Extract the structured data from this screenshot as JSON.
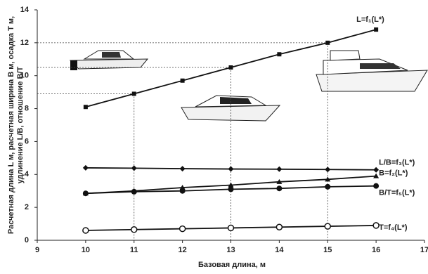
{
  "chart_data": {
    "type": "line",
    "x_label": "Базовая длина, м",
    "y_label": [
      "Расчетная длина L м, расчетная ширина В м, осадка Т м,",
      "удлинение L/B, отношение B/T"
    ],
    "x": [
      10,
      11,
      12,
      13,
      14,
      15,
      16
    ],
    "xlim": [
      9,
      17
    ],
    "xticks": [
      9,
      10,
      11,
      12,
      13,
      14,
      15,
      16,
      17
    ],
    "ylim": [
      0,
      14
    ],
    "yticks": [
      0,
      2,
      4,
      6,
      8,
      10,
      12,
      14
    ],
    "guide_points": [
      1,
      3,
      5
    ],
    "series": [
      {
        "name": "L=f₁(L*)",
        "color": "#111",
        "marker": "square",
        "values": [
          8.1,
          8.9,
          9.7,
          10.5,
          11.3,
          12.0,
          12.8
        ]
      },
      {
        "name": "L/B=f₃(L*)",
        "color": "#111",
        "marker": "diamond",
        "values": [
          4.4,
          4.38,
          4.35,
          4.33,
          4.32,
          4.3,
          4.28
        ]
      },
      {
        "name": "B=f₂(L*)",
        "color": "#111",
        "marker": "triangle",
        "values": [
          2.85,
          3.0,
          3.2,
          3.35,
          3.55,
          3.7,
          3.9
        ]
      },
      {
        "name": "B/T=f₅(L*)",
        "color": "#111",
        "marker": "circle",
        "values": [
          2.85,
          2.95,
          3.0,
          3.1,
          3.15,
          3.25,
          3.3
        ]
      },
      {
        "name": "T=f₄(L*)",
        "color": "#111",
        "marker": "open-circle",
        "values": [
          0.6,
          0.65,
          0.7,
          0.75,
          0.8,
          0.85,
          0.9
        ]
      }
    ]
  }
}
